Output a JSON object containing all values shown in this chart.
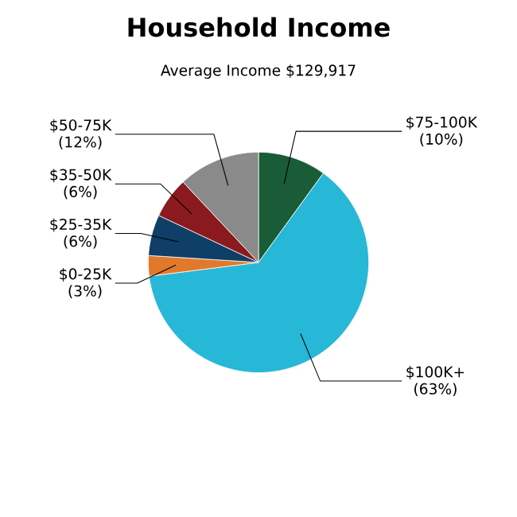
{
  "chart_data": {
    "type": "pie",
    "title": "Household Income",
    "subtitle": "Average Income  $129,917",
    "categories": [
      "$75-100K",
      "$100K+",
      "$0-25K",
      "$25-35K",
      "$35-50K",
      "$50-75K"
    ],
    "values": [
      10,
      63,
      3,
      6,
      6,
      12
    ],
    "value_labels": [
      "(10%)",
      "(63%)",
      "(3%)",
      "(6%)",
      "(6%)",
      "(12%)"
    ],
    "colors": [
      "#1a5c38",
      "#27b7d7",
      "#e07a2a",
      "#0f3f66",
      "#8a1a1e",
      "#8a8a8a"
    ]
  }
}
